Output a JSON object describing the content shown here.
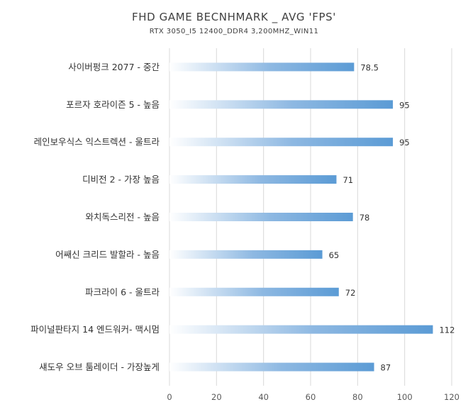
{
  "chart_data": {
    "type": "bar",
    "orientation": "horizontal",
    "title": "FHD GAME BECNHMARK _ AVG 'FPS'",
    "subtitle": "RTX 3050_I5 12400_DDR4 3,200MHZ_WIN11",
    "categories": [
      "사이버펑크 2077 - 중간",
      "포르자 호라이즌 5 - 높음",
      "레인보우식스 익스트렉션 - 울트라",
      "디비전 2 - 가장 높음",
      "와치독스리전 - 높음",
      "어쌔신 크리드 발할라 - 높음",
      "파크라이 6 - 울트라",
      "파이널판타지 14 엔드워커- 맥시멈",
      "섀도우 오브 툼레이더 - 가장높게"
    ],
    "values": [
      78.5,
      95,
      95,
      71,
      78,
      65,
      72,
      112,
      87
    ],
    "value_labels": [
      "78.5",
      "95",
      "95",
      "71",
      "78",
      "65",
      "72",
      "112",
      "87"
    ],
    "xlim": [
      0,
      120
    ],
    "xticks": [
      "0",
      "20",
      "40",
      "60",
      "80",
      "100",
      "120"
    ],
    "grid": true,
    "legend": "none",
    "colors": {
      "bar_start": "#ffffff",
      "bar_end": "#5b9bd5",
      "grid": "#d9d9d9",
      "text": "#404040"
    }
  }
}
